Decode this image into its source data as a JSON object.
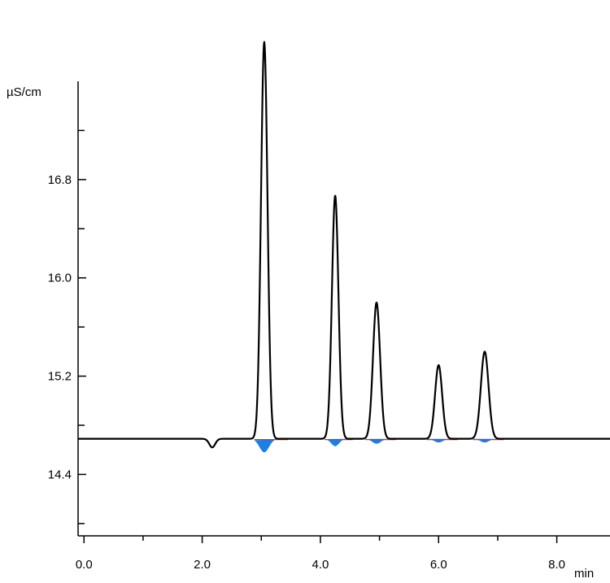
{
  "chart_data": {
    "type": "line",
    "title": "",
    "xlabel": "min",
    "ylabel": "µS/cm",
    "xlim": [
      -0.1,
      8.9
    ],
    "ylim": [
      13.9,
      17.6
    ],
    "x_ticks": [
      0.0,
      2.0,
      4.0,
      6.0,
      8.0
    ],
    "x_tick_labels": [
      "0.0",
      "2.0",
      "4.0",
      "6.0",
      "8.0"
    ],
    "y_ticks": [
      14.4,
      15.2,
      16.0,
      16.8
    ],
    "y_tick_labels": [
      "14.4",
      "15.2",
      "16.0",
      "16.8"
    ],
    "grid": false,
    "legend": "none",
    "series": [
      {
        "role": "main-trace",
        "color": "#000000",
        "baseline": 14.69,
        "peaks": [
          {
            "x": 2.17,
            "y": 14.62,
            "sigma": 0.05
          },
          {
            "x": 3.05,
            "y": 17.92,
            "sigma": 0.055
          },
          {
            "x": 4.25,
            "y": 16.67,
            "sigma": 0.055
          },
          {
            "x": 4.95,
            "y": 15.8,
            "sigma": 0.06
          },
          {
            "x": 6.0,
            "y": 15.29,
            "sigma": 0.06
          },
          {
            "x": 6.78,
            "y": 15.4,
            "sigma": 0.065
          }
        ]
      },
      {
        "role": "baseline-fill",
        "color": "#1e7fe0",
        "edge_color": "#e03020",
        "baseline": 14.69,
        "peaks": [
          {
            "x": 3.05,
            "y": 14.58,
            "from": 2.88,
            "to": 3.45
          },
          {
            "x": 4.25,
            "y": 14.63,
            "from": 4.07,
            "to": 4.55
          },
          {
            "x": 4.95,
            "y": 14.65,
            "from": 4.76,
            "to": 5.28
          },
          {
            "x": 6.0,
            "y": 14.66,
            "from": 5.8,
            "to": 6.32
          },
          {
            "x": 6.78,
            "y": 14.66,
            "from": 6.58,
            "to": 7.1
          }
        ]
      }
    ]
  }
}
